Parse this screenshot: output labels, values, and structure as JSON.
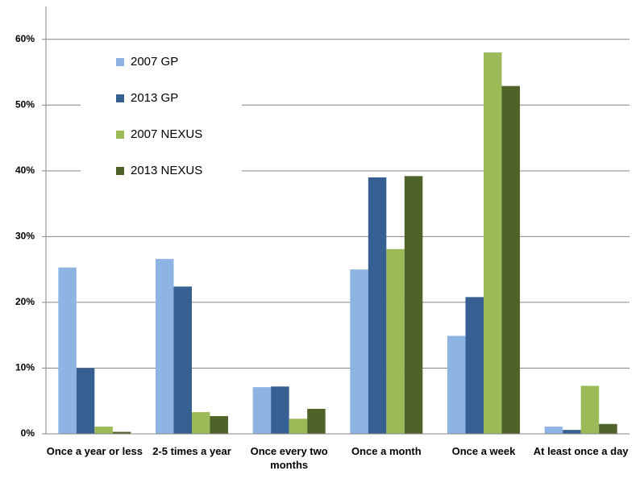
{
  "chart_data": {
    "type": "bar",
    "categories": [
      "Once a year or less",
      "2-5 times a year",
      "Once every two months",
      "Once a month",
      "Once a week",
      "At least once a day"
    ],
    "series": [
      {
        "name": "2007 GP",
        "color": "#8eb4e3",
        "values": [
          25.3,
          26.6,
          7.1,
          25,
          14.9,
          1.1
        ]
      },
      {
        "name": "2013 GP",
        "color": "#376092",
        "values": [
          10,
          22.4,
          7.2,
          39,
          20.8,
          0.6
        ]
      },
      {
        "name": "2007 NEXUS",
        "color": "#9bbb59",
        "values": [
          1.1,
          3.3,
          2.3,
          28.1,
          58,
          7.3
        ]
      },
      {
        "name": "2013 NEXUS",
        "color": "#4f6228",
        "values": [
          0.3,
          2.7,
          3.8,
          39.2,
          52.9,
          1.5
        ]
      }
    ],
    "ylim": [
      0,
      65
    ],
    "yticks": [
      {
        "value": 0,
        "label": "0%"
      },
      {
        "value": 10,
        "label": "10%"
      },
      {
        "value": 20,
        "label": "20%"
      },
      {
        "value": 30,
        "label": "30%"
      },
      {
        "value": 40,
        "label": "40%"
      },
      {
        "value": 50,
        "label": "50%"
      },
      {
        "value": 60,
        "label": "60%"
      }
    ],
    "grid": true,
    "legend": "upper-left"
  }
}
